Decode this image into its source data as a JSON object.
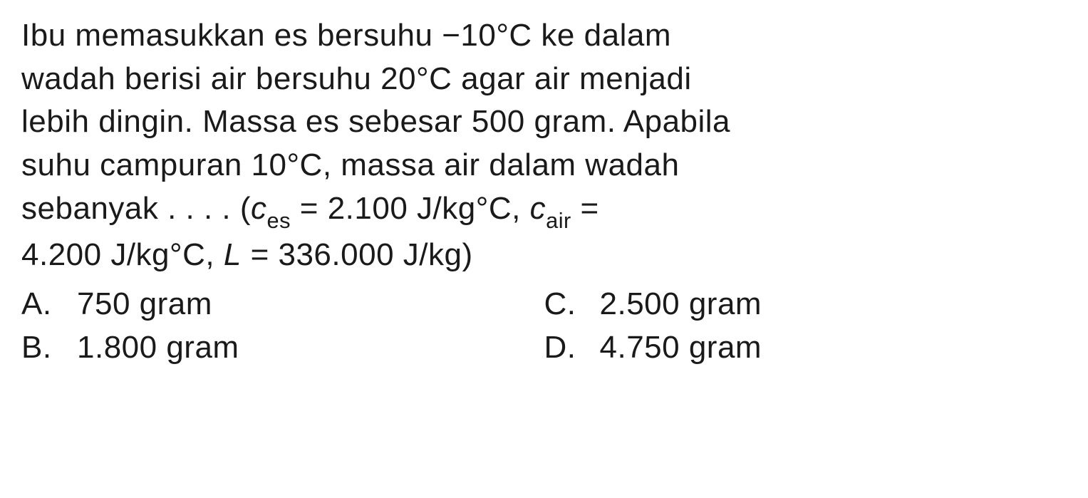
{
  "question": {
    "line1_part1": "Ibu memasukkan es bersuhu −10°C ke dalam",
    "line2_part1": "wadah berisi air bersuhu 20°C agar air menjadi",
    "line3_part1": "lebih dingin. Massa es sebesar 500 gram. Apabila",
    "line4_part1": "suhu campuran 10°C, massa air dalam wadah",
    "line5_prefix": "sebanyak . . . . (",
    "line5_ces_var": "c",
    "line5_ces_sub": "es",
    "line5_ces_val": " = 2.100 J/kg°C, ",
    "line5_cair_var": "c",
    "line5_cair_sub": "air",
    "line5_cair_eq": " =",
    "line6_prefix": "4.200 J/kg°C, ",
    "line6_L_var": "L",
    "line6_L_val": " = 336.000 J/kg)"
  },
  "options": {
    "a": {
      "label": "A.",
      "text": "750 gram"
    },
    "b": {
      "label": "B.",
      "text": "1.800 gram"
    },
    "c": {
      "label": "C.",
      "text": "2.500 gram"
    },
    "d": {
      "label": "D.",
      "text": "4.750 gram"
    }
  },
  "style": {
    "text_color": "#1a1a1a",
    "background_color": "#ffffff",
    "font_size_pt": 33,
    "font_family": "Arial, Helvetica, sans-serif"
  }
}
